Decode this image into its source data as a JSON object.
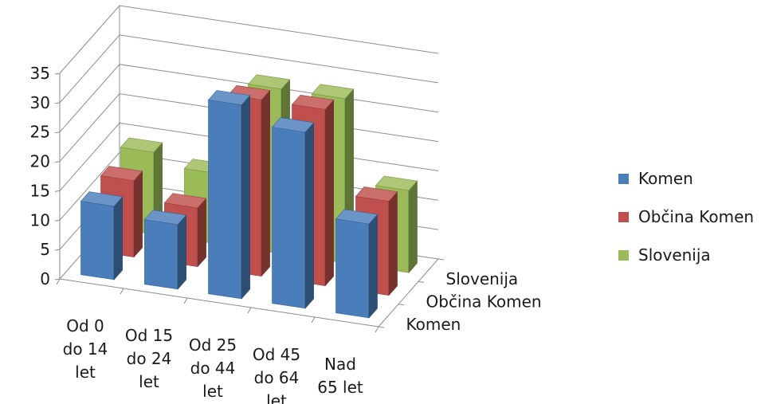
{
  "chart_data": {
    "type": "bar",
    "subtype": "3d-clustered-depth",
    "categories": [
      [
        "Od 0",
        "do 14",
        "let"
      ],
      [
        "Od 15",
        "do 24",
        "let"
      ],
      [
        "Od 25",
        "do 44",
        "let"
      ],
      [
        "Od 45",
        "do 64",
        "let"
      ],
      [
        "Nad",
        "65 let"
      ]
    ],
    "series": [
      {
        "name": "Komen",
        "values": [
          12.5,
          11,
          33,
          30,
          16
        ],
        "color": "#4a7ebb"
      },
      {
        "name": "Občina Komen",
        "values": [
          13,
          10,
          30,
          30,
          16
        ],
        "color": "#c0504d"
      },
      {
        "name": "Slovenija",
        "values": [
          14,
          12,
          28,
          28,
          14
        ],
        "color": "#9bbb59"
      }
    ],
    "depth_labels": [
      "Komen",
      "Občina Komen",
      "Slovenija"
    ],
    "yticks": [
      0,
      5,
      10,
      15,
      20,
      25,
      30,
      35
    ],
    "ylim": [
      0,
      35
    ],
    "grid": true,
    "legend": "right"
  }
}
